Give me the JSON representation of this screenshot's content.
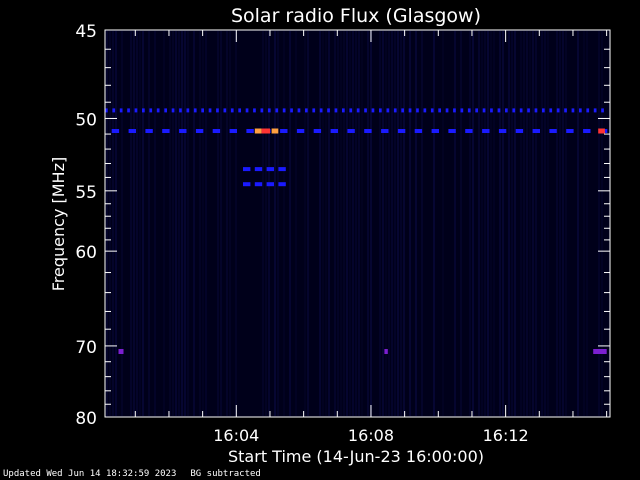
{
  "chart_data": {
    "type": "heatmap",
    "title": "Solar radio Flux (Glasgow)",
    "xlabel": "Start Time (14-Jun-23 16:00:00)",
    "ylabel": "Frequency [MHz]",
    "x_unit": "minutes after 16:00",
    "xlim": [
      0.1,
      15.1
    ],
    "ylim": [
      45,
      80
    ],
    "y_scale": "reciprocal",
    "x_ticks": [
      {
        "v": 4,
        "label": "16:04"
      },
      {
        "v": 8,
        "label": "16:08"
      },
      {
        "v": 12,
        "label": "16:12"
      }
    ],
    "y_ticks": [
      {
        "v": 45,
        "label": "45"
      },
      {
        "v": 50,
        "label": "50"
      },
      {
        "v": 55,
        "label": "55"
      },
      {
        "v": 60,
        "label": "60"
      },
      {
        "v": 70,
        "label": "70"
      },
      {
        "v": 80,
        "label": "80"
      }
    ],
    "y_minor": [
      46,
      47,
      48,
      49,
      51,
      52,
      53,
      54,
      56,
      57,
      58,
      59,
      62,
      64,
      66,
      68,
      72,
      74,
      76,
      78
    ],
    "x_minor": [
      1,
      2,
      3,
      5,
      6,
      7,
      9,
      10,
      11,
      13,
      14,
      15
    ],
    "background_color": "#00001a",
    "colors": {
      "low": "#1a1aff",
      "mid": "#7b1fd0",
      "high": "#ff3333",
      "peak": "#ffa040"
    },
    "features": [
      {
        "desc": "dotted band",
        "freq": 49.5,
        "x_start": 0.1,
        "x_end": 15.0,
        "step": 0.22,
        "width": 0.08,
        "level": "low"
      },
      {
        "desc": "dashed band",
        "freq": 50.8,
        "x_start": 0.3,
        "x_end": 15.0,
        "step": 0.5,
        "width": 0.22,
        "level": "low"
      },
      {
        "desc": "burst",
        "freq": 50.8,
        "x_start": 4.55,
        "x_end": 4.75,
        "level": "peak"
      },
      {
        "desc": "burst",
        "freq": 50.8,
        "x_start": 5.05,
        "x_end": 5.25,
        "level": "peak"
      },
      {
        "desc": "burst",
        "freq": 50.8,
        "x_start": 4.75,
        "x_end": 5.0,
        "level": "high"
      },
      {
        "desc": "burst",
        "freq": 50.8,
        "x_start": 14.75,
        "x_end": 14.95,
        "level": "high"
      },
      {
        "desc": "short dashes",
        "freq": 53.4,
        "x_start": 4.2,
        "x_end": 5.3,
        "step": 0.35,
        "width": 0.22,
        "level": "low"
      },
      {
        "desc": "short dashes",
        "freq": 54.5,
        "x_start": 4.2,
        "x_end": 5.3,
        "step": 0.35,
        "width": 0.22,
        "level": "low"
      },
      {
        "desc": "marks",
        "freq": 70.7,
        "x_start": 0.5,
        "x_end": 0.65,
        "level": "mid"
      },
      {
        "desc": "marks",
        "freq": 70.7,
        "x_start": 8.4,
        "x_end": 8.5,
        "level": "mid"
      },
      {
        "desc": "marks",
        "freq": 70.7,
        "x_start": 14.6,
        "x_end": 15.0,
        "level": "mid"
      }
    ]
  },
  "footer": {
    "updated": "Updated Wed Jun 14 18:32:59 2023",
    "note": "BG subtracted"
  }
}
